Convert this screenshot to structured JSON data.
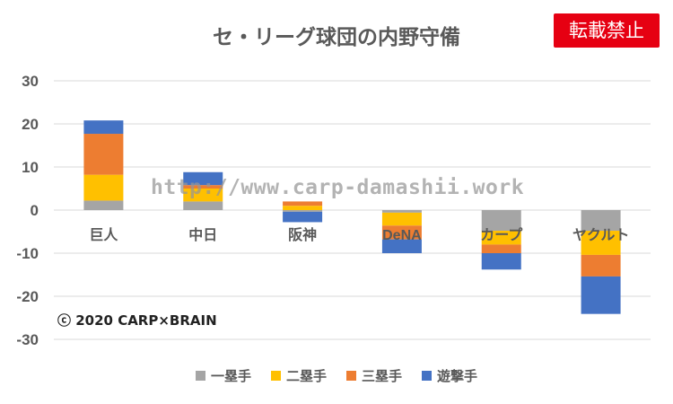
{
  "title": "セ・リーグ球団の内野守備",
  "badge": "転載禁止",
  "watermark": "http://www.carp-damashii.work",
  "copyright": "ⓒ 2020 CARP×BRAIN",
  "colors": {
    "一塁手": "#a5a5a5",
    "二塁手": "#ffc000",
    "三塁手": "#ed7d31",
    "遊撃手": "#4472c4",
    "grid": "#d9d9d9",
    "text": "#595959"
  },
  "chart_data": {
    "type": "bar",
    "stacked": true,
    "categories": [
      "巨人",
      "中日",
      "阪神",
      "DeNA",
      "カープ",
      "ヤクルト"
    ],
    "ylim": [
      -30,
      30
    ],
    "yticks": [
      30,
      20,
      10,
      0,
      -10,
      -20,
      -30
    ],
    "grid": true,
    "legend": "bottom",
    "series": [
      {
        "name": "一塁手",
        "values": [
          2.2,
          2.0,
          -0.4,
          -0.6,
          -4.8,
          -4.8
        ]
      },
      {
        "name": "二塁手",
        "values": [
          6.0,
          3.0,
          1.0,
          -3.0,
          -3.2,
          -5.6
        ]
      },
      {
        "name": "三塁手",
        "values": [
          9.5,
          0.8,
          1.0,
          -3.2,
          -2.0,
          -5.0
        ]
      },
      {
        "name": "遊撃手",
        "values": [
          3.1,
          3.0,
          -2.4,
          -3.2,
          -3.8,
          -8.7
        ]
      }
    ]
  }
}
